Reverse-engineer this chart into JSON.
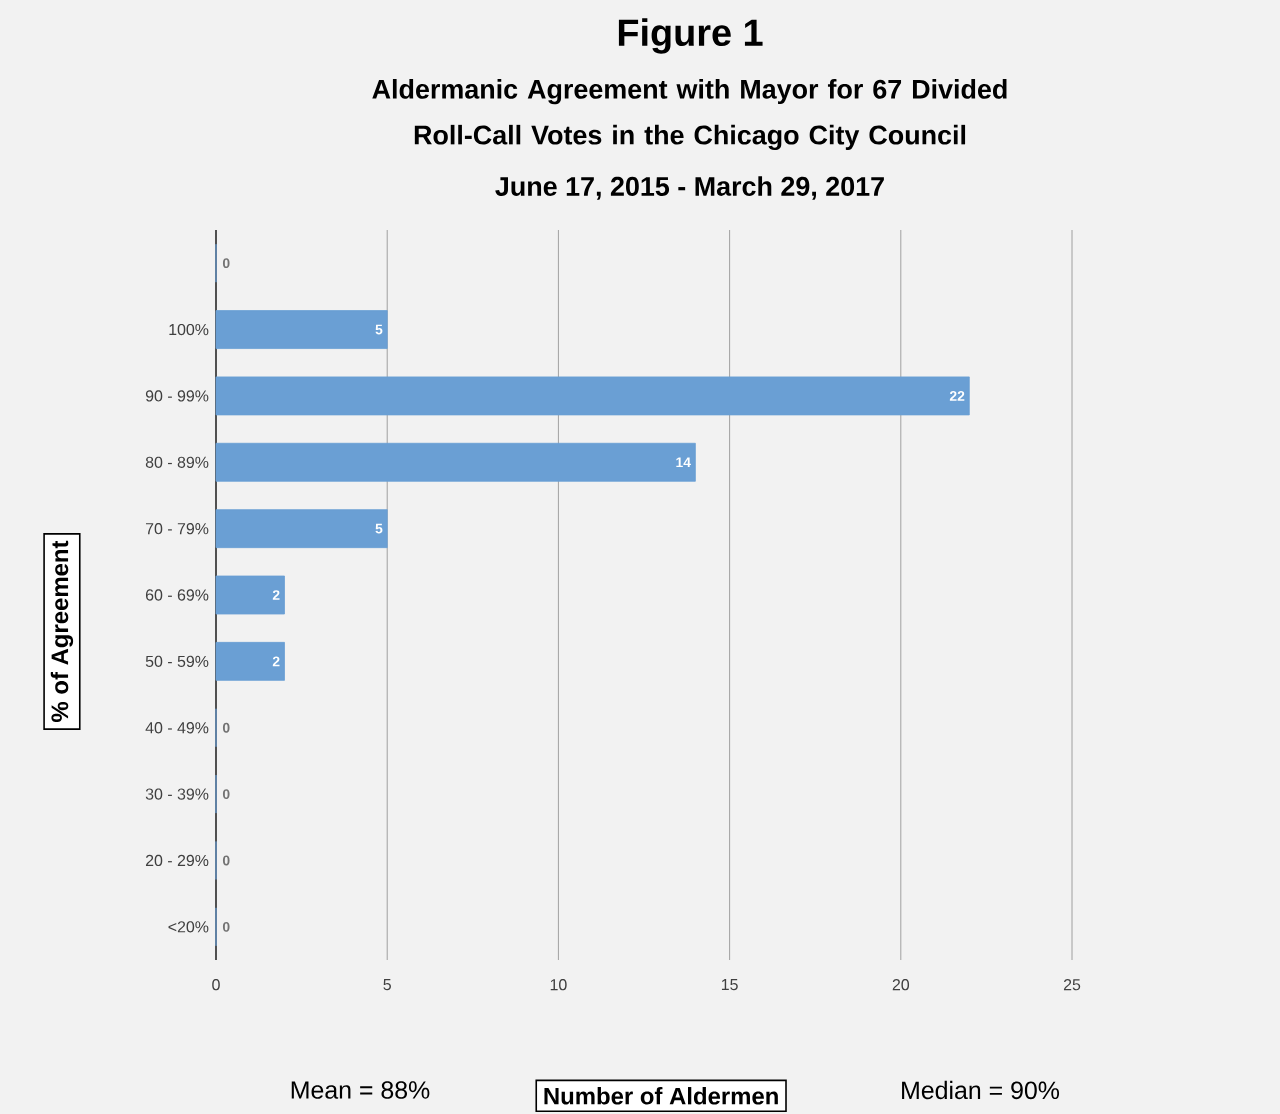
{
  "chart_data": {
    "type": "bar",
    "orientation": "horizontal",
    "title": "Figure 1",
    "subtitle": "Aldermanic Agreement with Mayor for 67 Divided Roll-Call Votes in the Chicago City Council",
    "xlabel": "Number of Aldermen",
    "ylabel": "% of Agreement",
    "categories": [
      null,
      "100%",
      "90 - 99%",
      "80 - 89%",
      "70 - 79%",
      "60 - 69%",
      "50 - 59%",
      "40 - 49%",
      "30 - 39%",
      "20 - 29%",
      "<20%"
    ],
    "values": [
      0,
      5,
      22,
      14,
      5,
      2,
      2,
      0,
      0,
      0,
      0
    ],
    "color": "#6a9fd4",
    "data_labels": true,
    "xlim": [
      0,
      25
    ],
    "xticks": [
      0,
      5,
      10,
      15,
      20,
      25
    ],
    "grid": "x",
    "annotations": [
      "June 17, 2015 - March 29, 2017",
      "Mean = 88%",
      "Median = 90%"
    ]
  }
}
